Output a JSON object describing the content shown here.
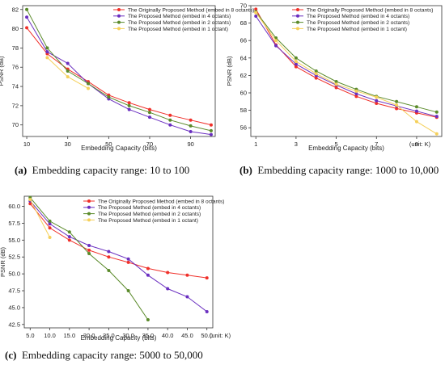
{
  "series_styles": [
    {
      "color": "#f0302a",
      "marker": "circle"
    },
    {
      "color": "#6a2fc0",
      "marker": "circle"
    },
    {
      "color": "#5a8a2a",
      "marker": "circle"
    },
    {
      "color": "#f5d05a",
      "marker": "circle"
    }
  ],
  "captions": [
    {
      "tag": "(a)",
      "text": "Embedding capacity range: 10 to 100"
    },
    {
      "tag": "(b)",
      "text": "Embedding capacity range: 1000 to 10,000"
    },
    {
      "tag": "(c)",
      "text": "Embedding capacity range: 5000 to 50,000"
    }
  ],
  "chart_data": [
    {
      "type": "line",
      "xlabel": "Embedding Capacity (bits)",
      "ylabel": "PSNR (dB)",
      "xlim": [
        8,
        102
      ],
      "ylim": [
        68.8,
        82.4
      ],
      "xticks": [
        10,
        30,
        50,
        70,
        90
      ],
      "yticks": [
        70,
        72,
        74,
        76,
        78,
        80,
        82
      ],
      "unit_note": "",
      "legend_position": "top-right",
      "grid": false,
      "series": [
        {
          "name": "The Originally Proposed Method (embed in 8 octants)",
          "x": [
            10,
            20,
            30,
            40,
            50,
            60,
            70,
            80,
            90,
            100
          ],
          "y": [
            80.1,
            77.4,
            75.8,
            74.5,
            73.1,
            72.3,
            71.6,
            71.0,
            70.5,
            70.0
          ]
        },
        {
          "name": "The Proposed Method (embed in 4 octants)",
          "x": [
            10,
            20,
            30,
            40,
            50,
            60,
            70,
            80,
            90,
            100
          ],
          "y": [
            81.2,
            77.6,
            76.4,
            74.3,
            72.7,
            71.6,
            70.8,
            70.0,
            69.3,
            69.0
          ]
        },
        {
          "name": "The Proposed Method (embed in 2 octants)",
          "x": [
            10,
            20,
            30,
            40,
            50,
            60,
            70,
            80,
            90,
            100
          ],
          "y": [
            82.0,
            78.0,
            75.6,
            74.3,
            72.9,
            72.0,
            71.3,
            70.5,
            69.9,
            69.4
          ]
        },
        {
          "name": "The Proposed Method (embed in 1 octant)",
          "x": [
            20,
            30,
            40
          ],
          "y": [
            77.0,
            75.0,
            73.8
          ]
        }
      ]
    },
    {
      "type": "line",
      "xlabel": "Embedding Capacity (bits)",
      "ylabel": "PSNR (dB)",
      "xlim": [
        0.75,
        10.25
      ],
      "ylim": [
        55.0,
        70.0
      ],
      "xticks": [
        1,
        3,
        5,
        7,
        9
      ],
      "yticks": [
        56,
        58,
        60,
        62,
        64,
        66,
        68,
        70
      ],
      "unit_note": "(unit: K)",
      "legend_position": "top-right",
      "grid": false,
      "series": [
        {
          "name": "The Originally Proposed Method (embed in 8 octants)",
          "x": [
            1,
            2,
            3,
            4,
            5,
            6,
            7,
            8,
            9,
            10
          ],
          "y": [
            69.6,
            65.5,
            63.0,
            61.7,
            60.6,
            59.6,
            58.8,
            58.2,
            57.7,
            57.2
          ]
        },
        {
          "name": "The Proposed Method (embed in 4 octants)",
          "x": [
            1,
            2,
            3,
            4,
            5,
            6,
            7,
            8,
            9,
            10
          ],
          "y": [
            68.8,
            65.4,
            63.3,
            62.0,
            60.9,
            59.9,
            59.1,
            58.5,
            57.9,
            57.3
          ]
        },
        {
          "name": "The Proposed Method (embed in 2 octants)",
          "x": [
            1,
            2,
            3,
            4,
            5,
            6,
            7,
            8,
            9,
            10
          ],
          "y": [
            69.3,
            66.3,
            64.0,
            62.5,
            61.3,
            60.4,
            59.6,
            59.0,
            58.4,
            57.8
          ]
        },
        {
          "name": "The Proposed Method (embed in 1 octant)",
          "x": [
            1,
            2,
            3,
            4,
            5,
            6,
            7,
            8,
            9,
            10
          ],
          "y": [
            69.2,
            66.0,
            63.6,
            62.2,
            61.0,
            60.2,
            59.5,
            58.6,
            56.7,
            55.3
          ]
        }
      ]
    },
    {
      "type": "line",
      "xlabel": "Embedding Capacity (bits)",
      "ylabel": "PSNR (dB)",
      "xlim": [
        3.5,
        51.5
      ],
      "ylim": [
        42.0,
        61.5
      ],
      "xticks": [
        5.0,
        10.0,
        15.0,
        20.0,
        25.0,
        30.0,
        35.0,
        40.0,
        45.0,
        50.0
      ],
      "xticklabels": [
        "5.0",
        "10.0",
        "15.0",
        "20.0",
        "25.0",
        "30.0",
        "35.0",
        "40.0",
        "45.0",
        "50.0"
      ],
      "yticks": [
        42.5,
        45.0,
        47.5,
        50.0,
        52.5,
        55.0,
        57.5,
        60.0
      ],
      "yticklabels": [
        "42.5",
        "45.0",
        "47.5",
        "50.0",
        "52.5",
        "55.0",
        "57.5",
        "60.0"
      ],
      "unit_note": "(unit: K)",
      "legend_position": "top-right",
      "grid": false,
      "series": [
        {
          "name": "The Originally Proposed Method (embed in 8 octants)",
          "x": [
            5,
            10,
            15,
            20,
            25,
            30,
            35,
            40,
            45,
            50
          ],
          "y": [
            60.4,
            56.8,
            55.0,
            53.5,
            52.5,
            51.7,
            50.8,
            50.2,
            49.8,
            49.4
          ]
        },
        {
          "name": "The Proposed Method (embed in 4 octants)",
          "x": [
            5,
            10,
            15,
            20,
            25,
            30,
            35,
            40,
            45,
            50
          ],
          "y": [
            60.8,
            57.4,
            55.5,
            54.2,
            53.3,
            52.2,
            49.8,
            47.8,
            46.6,
            44.4
          ]
        },
        {
          "name": "The Proposed Method (embed in 2 octants)",
          "x": [
            5,
            10,
            15,
            20,
            25,
            30,
            35
          ],
          "y": [
            61.3,
            57.8,
            56.2,
            53.0,
            50.5,
            47.5,
            43.2
          ]
        },
        {
          "name": "The Proposed Method (embed in 1 octant)",
          "x": [
            5,
            10
          ],
          "y": [
            61.0,
            55.4
          ]
        }
      ]
    }
  ]
}
